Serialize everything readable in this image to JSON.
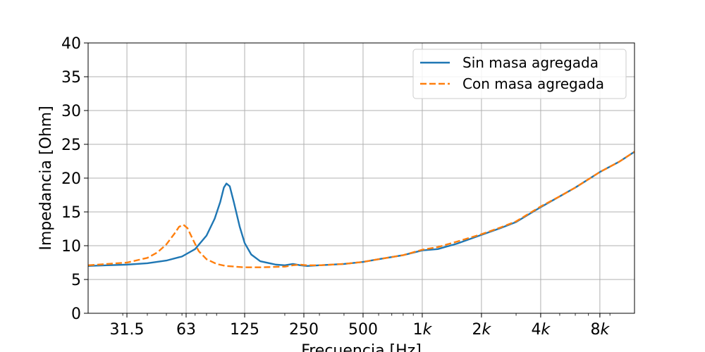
{
  "chart_data": {
    "type": "line",
    "xlabel": "Frecuencia [Hz]",
    "ylabel": "Impedancia [Ohm]",
    "x_scale": "log",
    "xlim": [
      20,
      12000
    ],
    "ylim": [
      0,
      40
    ],
    "grid": true,
    "legend_position": "top-right",
    "x_ticks": [
      {
        "value": 31.5,
        "label": "31.5"
      },
      {
        "value": 63,
        "label": "63"
      },
      {
        "value": 125,
        "label": "125"
      },
      {
        "value": 250,
        "label": "250"
      },
      {
        "value": 500,
        "label": "500"
      },
      {
        "value": 1000,
        "label": "1k"
      },
      {
        "value": 2000,
        "label": "2k"
      },
      {
        "value": 4000,
        "label": "4k"
      },
      {
        "value": 8000,
        "label": "8k"
      }
    ],
    "y_ticks": [
      0,
      5,
      10,
      15,
      20,
      25,
      30,
      35,
      40
    ],
    "series": [
      {
        "name": "Sin masa agregada",
        "color": "#1f77b4",
        "style": "solid",
        "x": [
          20,
          25,
          31.5,
          40,
          50,
          60,
          70,
          80,
          88,
          94,
          98,
          101,
          105,
          110,
          118,
          125,
          135,
          150,
          180,
          200,
          220,
          240,
          260,
          300,
          400,
          500,
          600,
          800,
          1000,
          1200,
          1500,
          2000,
          2500,
          3000,
          4000,
          5000,
          6000,
          8000,
          10000,
          12000
        ],
        "y": [
          7.0,
          7.1,
          7.2,
          7.4,
          7.8,
          8.4,
          9.5,
          11.5,
          14.0,
          16.5,
          18.6,
          19.2,
          18.8,
          16.5,
          12.8,
          10.4,
          8.7,
          7.7,
          7.2,
          7.1,
          7.3,
          7.1,
          7.0,
          7.1,
          7.3,
          7.6,
          8.0,
          8.6,
          9.3,
          9.5,
          10.3,
          11.6,
          12.6,
          13.5,
          15.7,
          17.3,
          18.6,
          20.9,
          22.4,
          23.9
        ]
      },
      {
        "name": "Con masa agregada",
        "color": "#ff7f0e",
        "style": "dashed",
        "x": [
          20,
          25,
          31.5,
          40,
          45,
          50,
          55,
          58,
          61,
          64,
          68,
          73,
          80,
          90,
          100,
          125,
          150,
          200,
          220,
          240,
          260,
          300,
          400,
          500,
          600,
          800,
          1000,
          1200,
          1500,
          2000,
          2500,
          3000,
          4000,
          5000,
          6000,
          8000,
          10000,
          12000
        ],
        "y": [
          7.1,
          7.3,
          7.5,
          8.2,
          9.0,
          10.2,
          11.8,
          12.8,
          13.1,
          12.6,
          11.0,
          9.2,
          8.0,
          7.3,
          7.0,
          6.8,
          6.8,
          6.9,
          7.1,
          7.2,
          7.1,
          7.1,
          7.3,
          7.6,
          8.0,
          8.6,
          9.4,
          9.8,
          10.6,
          11.7,
          12.7,
          13.6,
          15.8,
          17.3,
          18.6,
          20.9,
          22.4,
          23.9
        ]
      }
    ]
  }
}
